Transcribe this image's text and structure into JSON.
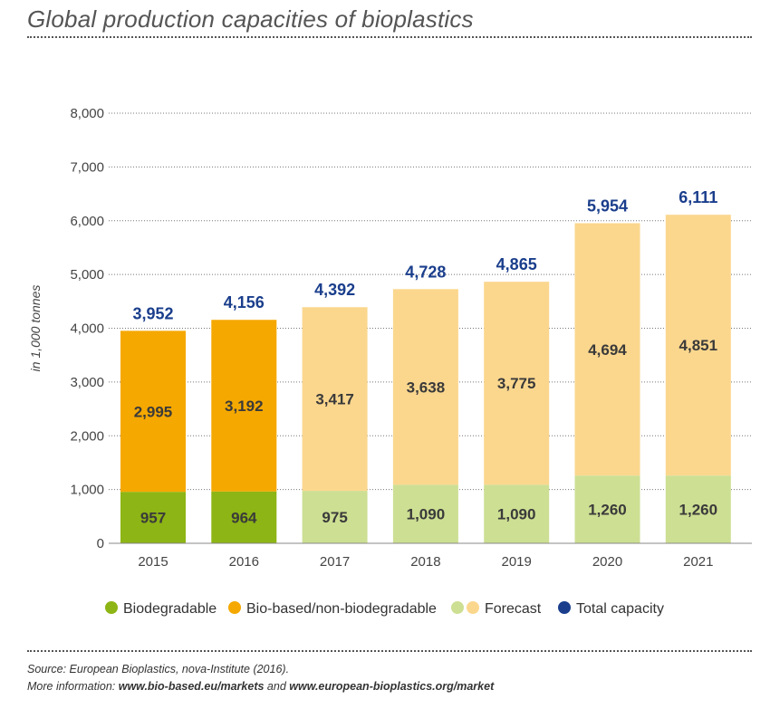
{
  "title": "Global production capacities of bioplastics",
  "chart_data": {
    "type": "bar",
    "stacked": true,
    "categories": [
      "2015",
      "2016",
      "2017",
      "2018",
      "2019",
      "2020",
      "2021"
    ],
    "series": [
      {
        "name": "Biodegradable",
        "values": [
          957,
          964,
          975,
          1090,
          1090,
          1260,
          1260
        ]
      },
      {
        "name": "Bio-based/non-biodegradable",
        "values": [
          2995,
          3192,
          3417,
          3638,
          3775,
          4694,
          4851
        ]
      }
    ],
    "totals": [
      3952,
      4156,
      4392,
      4728,
      4865,
      5954,
      6111
    ],
    "forecast_from": "2017",
    "ylabel": "in 1,000 tonnes",
    "ylim": [
      0,
      8000
    ],
    "yticks": [
      0,
      1000,
      2000,
      3000,
      4000,
      5000,
      6000,
      7000,
      8000
    ],
    "grid": true,
    "legend_position": "bottom",
    "legend": [
      {
        "label": "Biodegradable",
        "colors": [
          "#8db515"
        ]
      },
      {
        "label": "Bio-based/non-biodegradable",
        "colors": [
          "#f5a800"
        ]
      },
      {
        "label": "Forecast",
        "colors": [
          "#cddf93",
          "#fbd78e"
        ]
      },
      {
        "label": "Total capacity",
        "colors": [
          "#1a3e8c"
        ]
      }
    ],
    "colors": {
      "biodegradable": "#8db515",
      "biobased": "#f5a800",
      "forecast_biodegradable": "#cddf93",
      "forecast_biobased": "#fbd78e",
      "total_label": "#1a3e8c"
    }
  },
  "source": {
    "line1": "Source: European Bioplastics, nova-Institute (2016).",
    "line2_prefix": "More information: ",
    "link1": "www.bio-based.eu/markets",
    "line2_mid": " and ",
    "link2": "www.european-bioplastics.org/market"
  }
}
